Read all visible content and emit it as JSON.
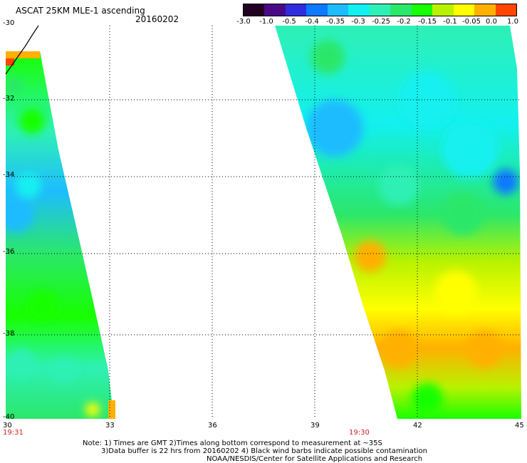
{
  "title": "ASCAT 25KM MLE-1 ascending",
  "date": "20160202",
  "colorbar": {
    "ticks": [
      "-3.0",
      "-1.0",
      "-0.5",
      "-0.4",
      "-0.35",
      "-0.3",
      "-0.25",
      "-0.2",
      "-0.15",
      "-0.1",
      "-0.05",
      "0.0",
      "1.0"
    ],
    "colors": [
      "#220022",
      "#4a0a86",
      "#2f2ddd",
      "#0c79ff",
      "#1ebcff",
      "#12f0ef",
      "#2ef0b5",
      "#2be76a",
      "#17ff00",
      "#b8f200",
      "#ffff00",
      "#ffb000",
      "#ff4500"
    ]
  },
  "y_axis": {
    "ticks": [
      "-30",
      "-32",
      "-34",
      "-36",
      "-38",
      "-40"
    ]
  },
  "x_axis": {
    "ticks": [
      "30",
      "33",
      "36",
      "39",
      "42",
      "45"
    ]
  },
  "times": {
    "left": "19:31",
    "right": "19:30"
  },
  "notes": {
    "line1": "Note: 1) Times are GMT 2)Times along bottom correspond to measurement at ~35S",
    "line2": "3)Data buffer is 22 hrs from 20160202 4) Black wind barbs indicate possible contamination",
    "line3": "NOAA/NESDIS/Center for Satellite Applications and Research"
  },
  "colors": {
    "grid": "#000000",
    "time_label": "#d21e1e"
  }
}
